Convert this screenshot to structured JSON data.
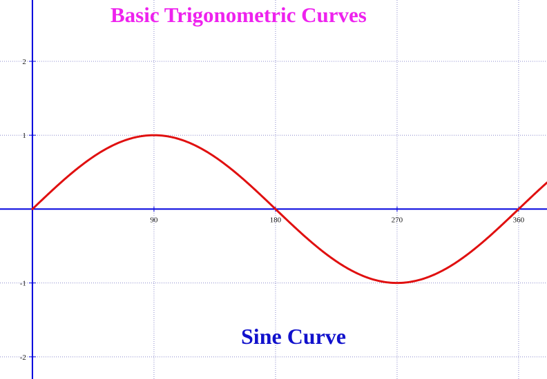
{
  "title": "Basic Trigonometric Curves",
  "annotation": "Sine Curve",
  "chart_data": {
    "type": "line",
    "title": "Basic Trigonometric Curves",
    "xlabel": "",
    "ylabel": "",
    "xlim": [
      -24,
      381
    ],
    "ylim": [
      -2.3,
      2.83
    ],
    "x_ticks": [
      90,
      180,
      270,
      360
    ],
    "x_tick_labels": [
      "90",
      "180",
      "270",
      "360"
    ],
    "y_ticks": [
      2,
      1,
      -1,
      -2
    ],
    "y_tick_labels": [
      "2",
      "1",
      "-1",
      "-2"
    ],
    "grid": true,
    "series": [
      {
        "function": "sin",
        "x_unit": "degrees",
        "x": [
          0,
          30,
          60,
          90,
          120,
          150,
          180,
          210,
          240,
          270,
          300,
          330,
          360,
          381
        ],
        "values": [
          0,
          0.5,
          0.866,
          1,
          0.866,
          0.5,
          0,
          -0.5,
          -0.866,
          -1,
          -0.866,
          -0.5,
          0,
          0.354
        ]
      }
    ],
    "annotations": [
      "Sine Curve"
    ]
  },
  "colors": {
    "curve": "#e01010",
    "axis": "#0000dd",
    "grid": "#8888cc",
    "title": "#ee22ee",
    "annotation": "#1111cc"
  }
}
